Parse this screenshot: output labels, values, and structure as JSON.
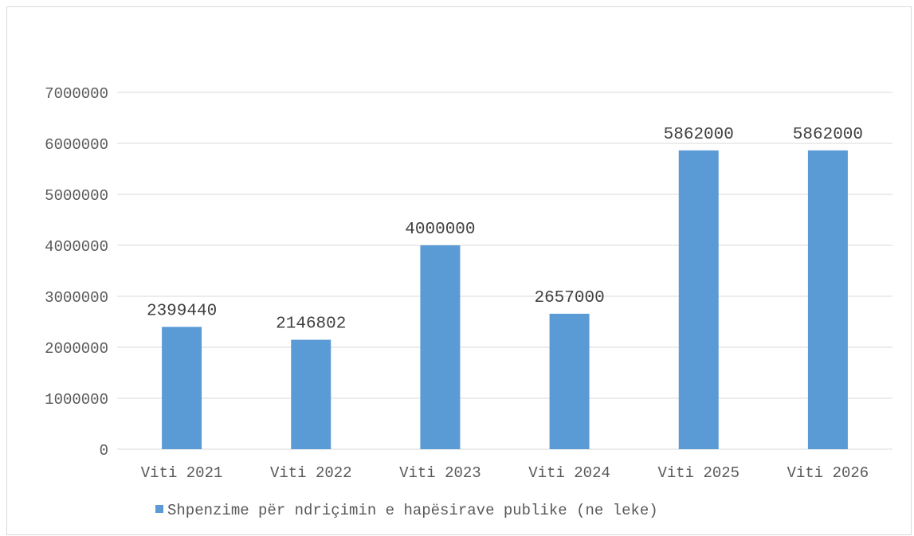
{
  "chart_data": {
    "type": "bar",
    "categories": [
      "Viti 2021",
      "Viti 2022",
      "Viti 2023",
      "Viti 2024",
      "Viti 2025",
      "Viti 2026"
    ],
    "series": [
      {
        "name": "Shpenzime për ndriçimin e hapësirave publike (ne leke)",
        "values": [
          2399440,
          2146802,
          4000000,
          2657000,
          5862000,
          5862000
        ],
        "data_labels": [
          "2399440",
          "2146802",
          "4000000",
          "2657000",
          "5862000",
          "5862000"
        ],
        "color": "#5b9bd5"
      }
    ],
    "y_ticks": [
      "0",
      "1000000",
      "2000000",
      "3000000",
      "4000000",
      "5000000",
      "6000000",
      "7000000"
    ],
    "ylim": [
      0,
      7000000
    ],
    "grid": true,
    "legend_position": "bottom",
    "gridline_color": "#d9d9d9"
  }
}
